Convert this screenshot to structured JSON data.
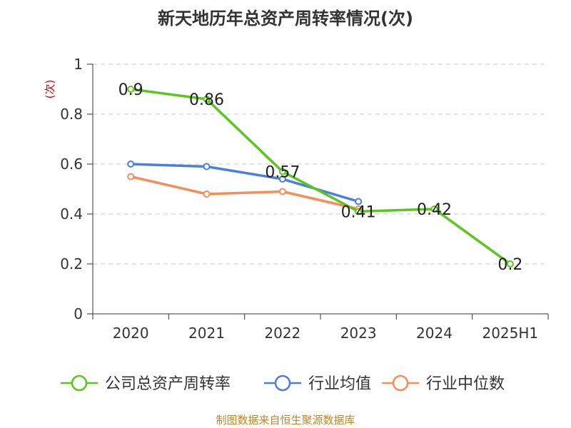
{
  "chart_data": {
    "type": "line",
    "title": "新天地历年总资产周转率情况(次)",
    "ylabel": "(次)",
    "xlabel": "",
    "categories": [
      "2020",
      "2021",
      "2022",
      "2023",
      "2024",
      "2025H1"
    ],
    "ylim": [
      0,
      1
    ],
    "yticks": [
      0,
      0.2,
      0.4,
      0.6,
      0.8,
      1
    ],
    "ytick_labels": [
      "0",
      "0.2",
      "0.4",
      "0.6",
      "0.8",
      "1"
    ],
    "grid": true,
    "legend_position": "bottom",
    "series": [
      {
        "name": "公司总资产周转率",
        "color": "#5cc61e",
        "values": [
          0.9,
          0.86,
          0.57,
          0.41,
          0.42,
          0.2
        ],
        "data_labels": [
          "0.9",
          "0.86",
          "0.57",
          "0.41",
          "0.42",
          "0.2"
        ]
      },
      {
        "name": "行业均值",
        "color": "#4a7ee0",
        "values": [
          0.6,
          0.59,
          0.54,
          0.45,
          null,
          null
        ]
      },
      {
        "name": "行业中位数",
        "color": "#f78d5a",
        "values": [
          0.55,
          0.48,
          0.49,
          0.42,
          null,
          null
        ]
      }
    ]
  },
  "source_text": "制图数据来自恒生聚源数据库"
}
